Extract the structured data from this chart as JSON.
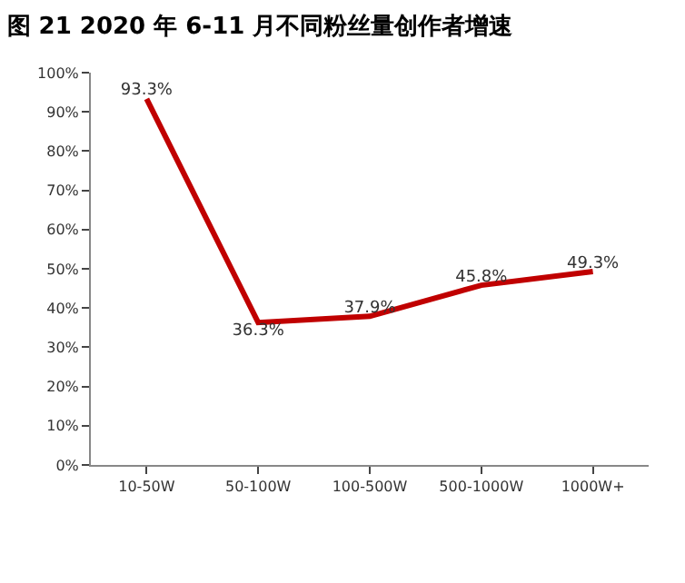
{
  "chart_data": {
    "type": "line",
    "title": "图 21 2020 年 6-11 月不同粉丝量创作者增速",
    "categories": [
      "10-50W",
      "50-100W",
      "100-500W",
      "500-1000W",
      "1000W+"
    ],
    "series": [
      {
        "color": "#c00000",
        "values": [
          93.3,
          36.3,
          37.9,
          45.8,
          49.3
        ],
        "value_labels": [
          "93.3%",
          "36.3%",
          "37.9%",
          "45.8%",
          "49.3%"
        ]
      }
    ],
    "ylim": [
      0,
      100
    ],
    "yticks": [
      {
        "value": 0,
        "label": "0%"
      },
      {
        "value": 10,
        "label": "10%"
      },
      {
        "value": 20,
        "label": "20%"
      },
      {
        "value": 30,
        "label": "30%"
      },
      {
        "value": 40,
        "label": "40%"
      },
      {
        "value": 50,
        "label": "50%"
      },
      {
        "value": 60,
        "label": "60%"
      },
      {
        "value": 70,
        "label": "70%"
      },
      {
        "value": 80,
        "label": "80%"
      },
      {
        "value": 90,
        "label": "90%"
      },
      {
        "value": 100,
        "label": "100%"
      }
    ],
    "marker": "none",
    "line_style": "solid"
  }
}
